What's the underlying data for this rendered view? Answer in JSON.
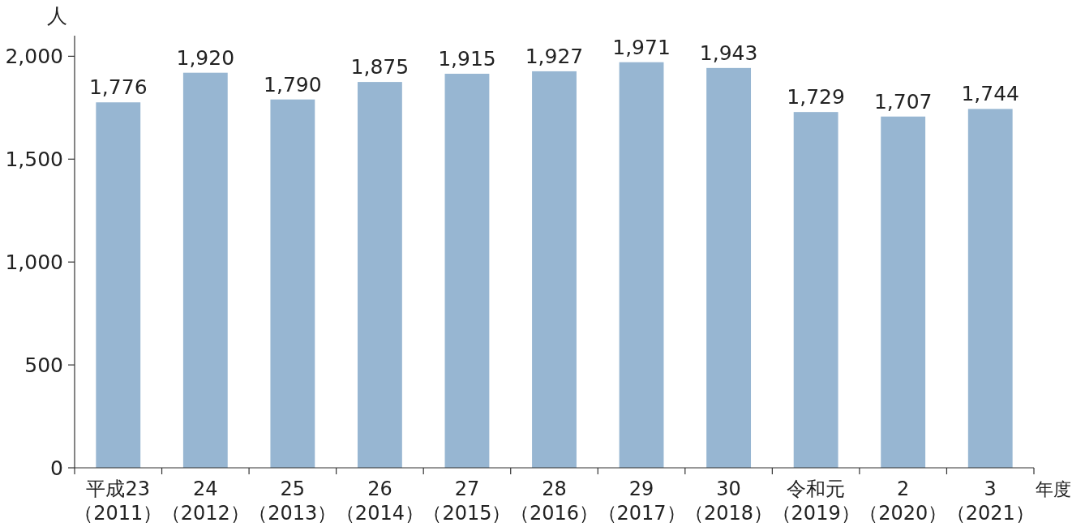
{
  "chart_data": {
    "type": "bar",
    "ylabel": "人",
    "xlabel": "年度",
    "categories": [
      "平成23（2011）",
      "24（2012）",
      "25（2013）",
      "26（2014）",
      "27（2015）",
      "28（2016）",
      "29（2017）",
      "30（2018）",
      "令和元（2019）",
      "2（2020）",
      "3（2021）"
    ],
    "values": [
      1776,
      1920,
      1790,
      1875,
      1915,
      1927,
      1971,
      1943,
      1729,
      1707,
      1744
    ],
    "color": "#97b6d2",
    "ylim": [
      0,
      2100
    ],
    "yticks": [
      0,
      {
        "value": 500,
        "label": "500"
      },
      {
        "value": 1000,
        "label": "1,000"
      },
      {
        "value": 1500,
        "label": "1,500"
      },
      {
        "value": 2000,
        "label": "2,000"
      }
    ],
    "value_labels": [
      "1,776",
      "1,920",
      "1,790",
      "1,875",
      "1,915",
      "1,927",
      "1,971",
      "1,943",
      "1,729",
      "1,707",
      "1,744"
    ],
    "grid": false
  }
}
